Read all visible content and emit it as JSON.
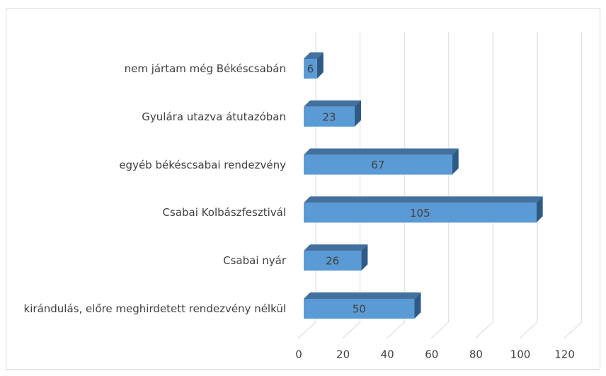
{
  "chart_data": {
    "type": "bar3d_horizontal",
    "categories": [
      "nem jártam még Békéscsabán",
      "Gyulára utazva átutazóban",
      "egyéb békéscsabai rendezvény",
      "Csabai Kolbászfesztivál",
      "Csabai nyár",
      "kirándulás, előre meghirdetett rendezvény nélkül"
    ],
    "values": [
      6,
      23,
      67,
      105,
      26,
      50
    ],
    "color": "#5b9bd5",
    "xlim": [
      0,
      120
    ],
    "xticks": [
      0,
      20,
      40,
      60,
      80,
      100,
      120
    ],
    "grid": true
  }
}
